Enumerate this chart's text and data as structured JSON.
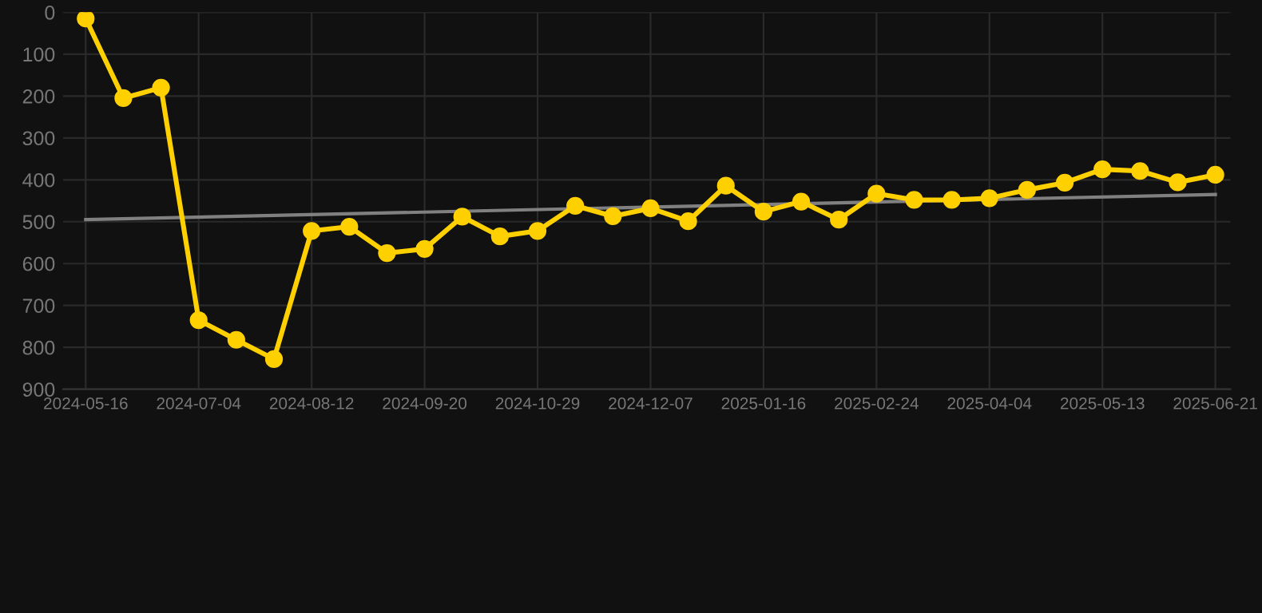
{
  "chart_data": {
    "type": "line",
    "categories": [
      "2024-05-16",
      null,
      null,
      "2024-07-04",
      null,
      null,
      "2024-08-12",
      null,
      null,
      "2024-09-20",
      null,
      null,
      "2024-10-29",
      null,
      null,
      "2024-12-07",
      null,
      null,
      "2025-01-16",
      null,
      null,
      "2025-02-24",
      null,
      null,
      "2025-04-04",
      null,
      null,
      "2025-05-13",
      null,
      null,
      "2025-06-21"
    ],
    "series": [
      {
        "color": "#ffd000",
        "marker": "circle",
        "values": [
          15,
          205,
          180,
          735,
          782,
          828,
          522,
          512,
          575,
          565,
          488,
          535,
          522,
          462,
          487,
          468,
          499,
          414,
          476,
          452,
          495,
          433,
          448,
          448,
          444,
          424,
          407,
          375,
          379,
          406,
          388
        ]
      },
      {
        "color": "#808080",
        "marker": "none",
        "values": [
          495,
          null,
          null,
          null,
          null,
          null,
          null,
          null,
          null,
          null,
          null,
          null,
          null,
          null,
          null,
          null,
          null,
          null,
          null,
          null,
          null,
          null,
          null,
          null,
          null,
          null,
          null,
          null,
          null,
          null,
          435
        ]
      }
    ],
    "ylim": [
      900,
      0
    ],
    "yticks": [
      0,
      100,
      200,
      300,
      400,
      500,
      600,
      700,
      800,
      900
    ],
    "grid": true,
    "line_style": "solid"
  }
}
